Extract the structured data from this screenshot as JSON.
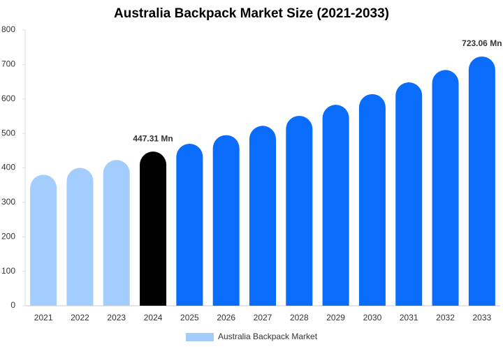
{
  "chart_data": {
    "type": "bar",
    "title": "Australia Backpack Market Size (2021-2033)",
    "categories": [
      "2021",
      "2022",
      "2023",
      "2024",
      "2025",
      "2026",
      "2027",
      "2028",
      "2029",
      "2030",
      "2031",
      "2032",
      "2033"
    ],
    "series": [
      {
        "name": "Australia Backpack Market",
        "color": "#a3cdfc",
        "values": [
          380,
          400,
          423,
          447.31,
          470,
          495,
          522,
          551,
          583,
          614,
          648,
          684,
          723.06
        ],
        "value_labels": [
          null,
          null,
          null,
          "447.31 Mn",
          null,
          null,
          null,
          null,
          null,
          null,
          null,
          null,
          "723.06 Mn"
        ],
        "colors": [
          "#a3cdfc",
          "#a3cdfc",
          "#a3cdfc",
          "#000000",
          "#0a6cfa",
          "#0a6cfa",
          "#0a6cfa",
          "#0a6cfa",
          "#0a6cfa",
          "#0a6cfa",
          "#0a6cfa",
          "#0a6cfa",
          "#0a6cfa"
        ]
      }
    ],
    "ylim": [
      0,
      800
    ],
    "yticks": [
      0,
      100,
      200,
      300,
      400,
      500,
      600,
      700,
      800
    ],
    "grid": false,
    "legend": "bottom"
  }
}
